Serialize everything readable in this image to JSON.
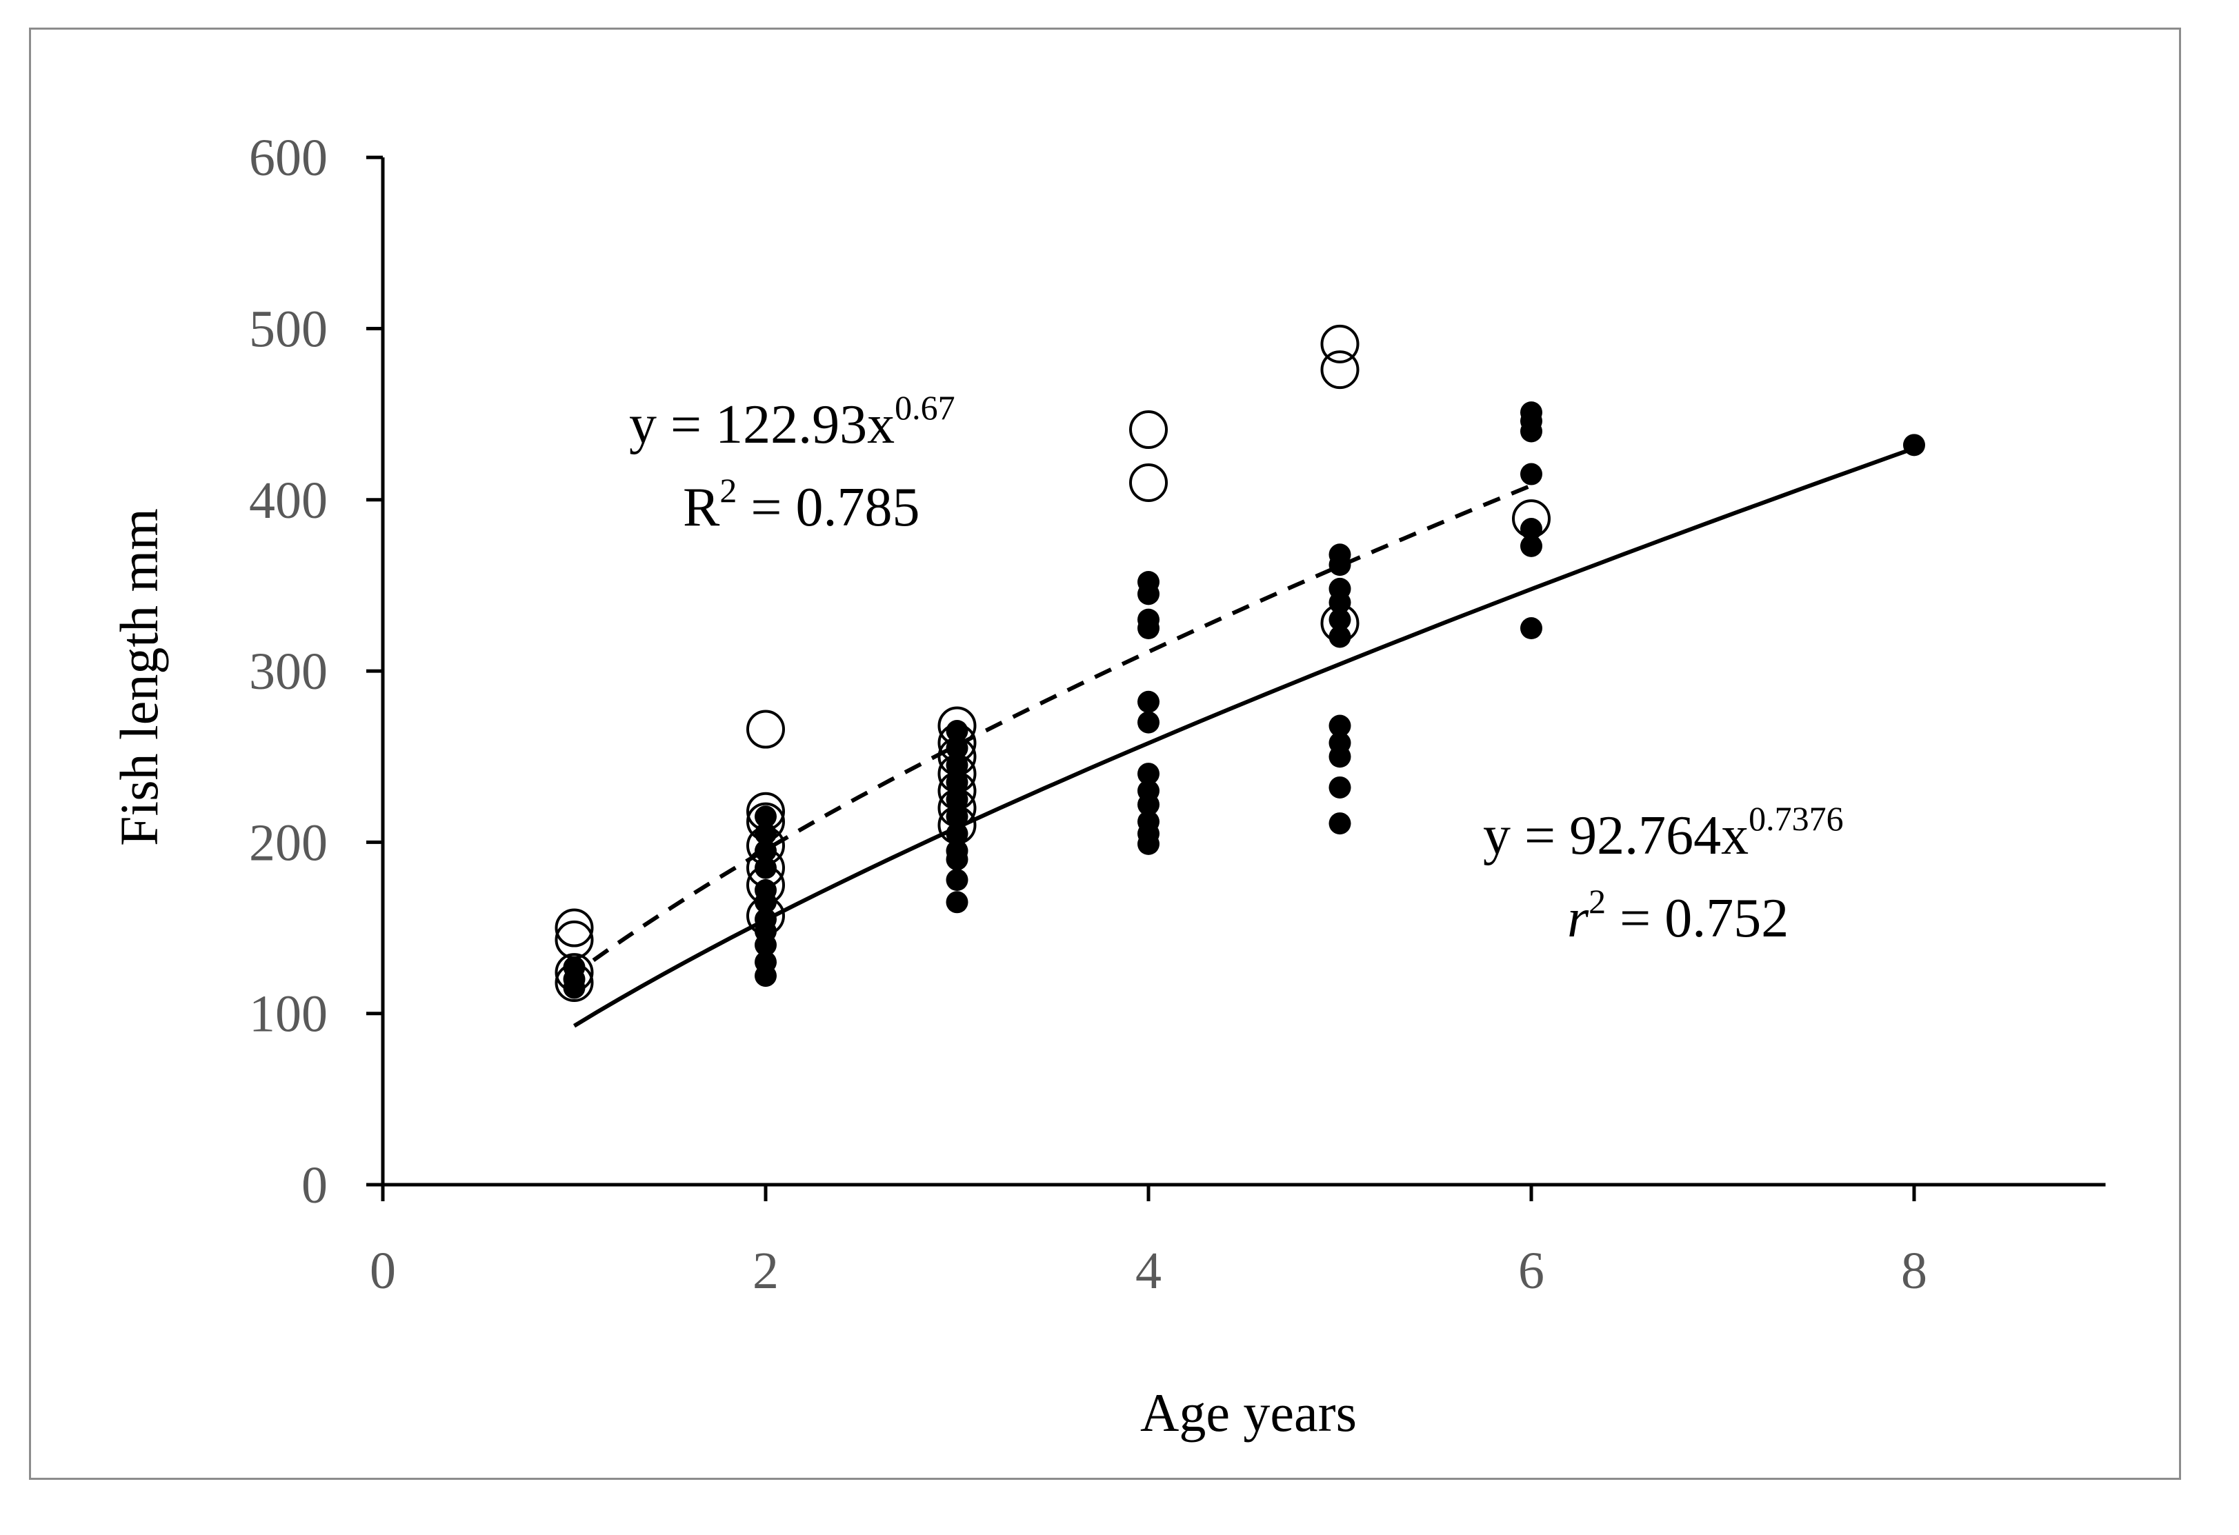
{
  "chart_data": {
    "type": "scatter",
    "title": "",
    "xlabel": "Age years",
    "ylabel": "Fish length mm",
    "xlim": [
      0,
      9
    ],
    "ylim": [
      0,
      600
    ],
    "x_ticks": [
      0,
      2,
      4,
      6,
      8
    ],
    "x_tick_labels": [
      "0",
      "2",
      "4",
      "6",
      "8"
    ],
    "y_ticks": [
      0,
      100,
      200,
      300,
      400,
      500,
      600
    ],
    "y_tick_labels": [
      "0",
      "100",
      "200",
      "300",
      "400",
      "500",
      "600"
    ],
    "grid": false,
    "series": [
      {
        "name": "open circles",
        "marker": "open-circle",
        "points": [
          [
            1,
            150
          ],
          [
            1,
            143
          ],
          [
            1,
            124
          ],
          [
            1,
            118
          ],
          [
            2,
            266
          ],
          [
            2,
            218
          ],
          [
            2,
            212
          ],
          [
            2,
            198
          ],
          [
            2,
            185
          ],
          [
            2,
            175
          ],
          [
            2,
            157
          ],
          [
            3,
            268
          ],
          [
            3,
            258
          ],
          [
            3,
            250
          ],
          [
            3,
            240
          ],
          [
            3,
            230
          ],
          [
            3,
            220
          ],
          [
            3,
            210
          ],
          [
            4,
            441
          ],
          [
            4,
            410
          ],
          [
            5,
            491
          ],
          [
            5,
            476
          ],
          [
            5,
            328
          ],
          [
            6,
            389
          ]
        ],
        "fit": {
          "equation": "y = 122.93x",
          "exponent": "0.67",
          "r2_symbol": "R",
          "r2_exp": "2",
          "r2_value": " = 0.785",
          "a": 122.93,
          "b": 0.67,
          "x_range": [
            1.1,
            6
          ],
          "line_style": "dashed"
        }
      },
      {
        "name": "filled circles",
        "marker": "filled-circle",
        "points": [
          [
            1,
            127
          ],
          [
            1,
            120
          ],
          [
            1,
            115
          ],
          [
            2,
            215
          ],
          [
            2,
            205
          ],
          [
            2,
            195
          ],
          [
            2,
            185
          ],
          [
            2,
            172
          ],
          [
            2,
            165
          ],
          [
            2,
            155
          ],
          [
            2,
            148
          ],
          [
            2,
            140
          ],
          [
            2,
            130
          ],
          [
            2,
            122
          ],
          [
            3,
            265
          ],
          [
            3,
            255
          ],
          [
            3,
            245
          ],
          [
            3,
            235
          ],
          [
            3,
            225
          ],
          [
            3,
            215
          ],
          [
            3,
            205
          ],
          [
            3,
            195
          ],
          [
            3,
            190
          ],
          [
            3,
            178
          ],
          [
            3,
            165
          ],
          [
            4,
            352
          ],
          [
            4,
            345
          ],
          [
            4,
            330
          ],
          [
            4,
            325
          ],
          [
            4,
            282
          ],
          [
            4,
            270
          ],
          [
            4,
            240
          ],
          [
            4,
            230
          ],
          [
            4,
            222
          ],
          [
            4,
            212
          ],
          [
            4,
            205
          ],
          [
            4,
            199
          ],
          [
            5,
            368
          ],
          [
            5,
            362
          ],
          [
            5,
            348
          ],
          [
            5,
            340
          ],
          [
            5,
            330
          ],
          [
            5,
            320
          ],
          [
            5,
            268
          ],
          [
            5,
            258
          ],
          [
            5,
            250
          ],
          [
            5,
            232
          ],
          [
            5,
            211
          ],
          [
            6,
            451
          ],
          [
            6,
            446
          ],
          [
            6,
            440
          ],
          [
            6,
            415
          ],
          [
            6,
            383
          ],
          [
            6,
            373
          ],
          [
            6,
            325
          ],
          [
            8,
            432
          ]
        ],
        "fit": {
          "equation": "y = 92.764x",
          "exponent": "0.7376",
          "r2_symbol": "r",
          "r2_exp": "2",
          "r2_value": " = 0.752",
          "a": 92.764,
          "b": 0.7376,
          "x_range": [
            1,
            8
          ],
          "line_style": "solid"
        }
      }
    ]
  }
}
